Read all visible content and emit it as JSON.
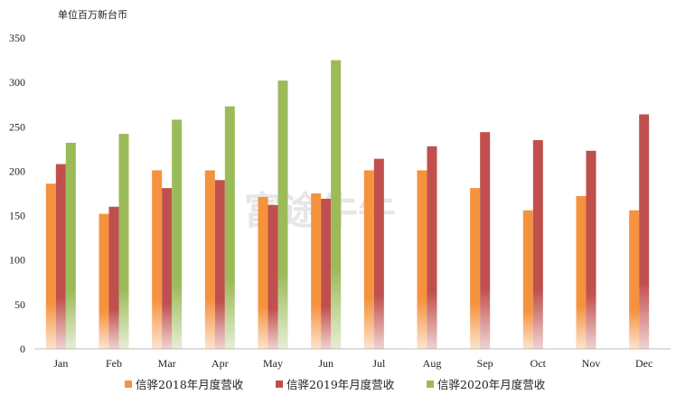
{
  "chart_data": {
    "type": "bar",
    "unit_label": "单位百万新台币",
    "watermark": "富途牛牛",
    "categories": [
      "Jan",
      "Feb",
      "Mar",
      "Apr",
      "May",
      "Jun",
      "Jul",
      "Aug",
      "Sep",
      "Oct",
      "Nov",
      "Dec"
    ],
    "ylim": [
      0,
      350
    ],
    "yticks": [
      0,
      50,
      100,
      150,
      200,
      250,
      300,
      350
    ],
    "grid": false,
    "legend_position": "bottom",
    "series": [
      {
        "name": "信骅2018年月度营收",
        "color": "#f5923e",
        "values": [
          186,
          152,
          201,
          201,
          171,
          175,
          201,
          201,
          181,
          156,
          172,
          156
        ]
      },
      {
        "name": "信骅2019年月度营收",
        "color": "#c0504d",
        "values": [
          208,
          160,
          181,
          190,
          162,
          169,
          214,
          228,
          244,
          235,
          223,
          264
        ]
      },
      {
        "name": "信骅2020年月度营收",
        "color": "#9bbb59",
        "values": [
          232,
          242,
          258,
          273,
          302,
          325,
          null,
          null,
          null,
          null,
          null,
          null
        ]
      }
    ]
  }
}
